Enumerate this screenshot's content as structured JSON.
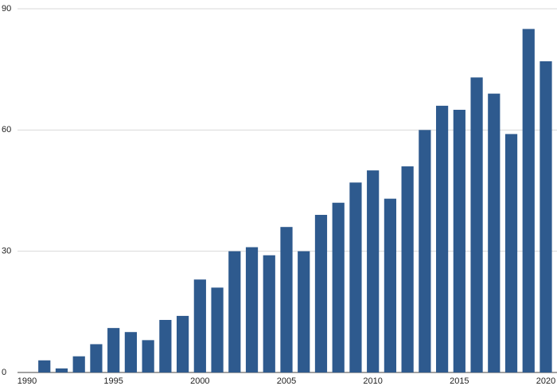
{
  "chart_data": {
    "type": "bar",
    "x": [
      1991,
      1992,
      1993,
      1994,
      1995,
      1996,
      1997,
      1998,
      1999,
      2000,
      2001,
      2002,
      2003,
      2004,
      2005,
      2006,
      2007,
      2008,
      2009,
      2010,
      2011,
      2012,
      2013,
      2014,
      2015,
      2016,
      2017,
      2018,
      2019,
      2020
    ],
    "values": [
      3,
      1,
      4,
      7,
      11,
      10,
      8,
      13,
      14,
      23,
      21,
      30,
      31,
      29,
      36,
      30,
      39,
      42,
      47,
      50,
      43,
      51,
      60,
      66,
      65,
      73,
      69,
      59,
      85,
      77
    ],
    "color": "#2e5a8e",
    "xlim": [
      1990,
      2020
    ],
    "xticks": [
      1990,
      1995,
      2000,
      2005,
      2010,
      2015,
      2020
    ],
    "ylim": [
      0,
      90
    ],
    "yticks": [
      0,
      30,
      60,
      90
    ],
    "grid": true
  }
}
